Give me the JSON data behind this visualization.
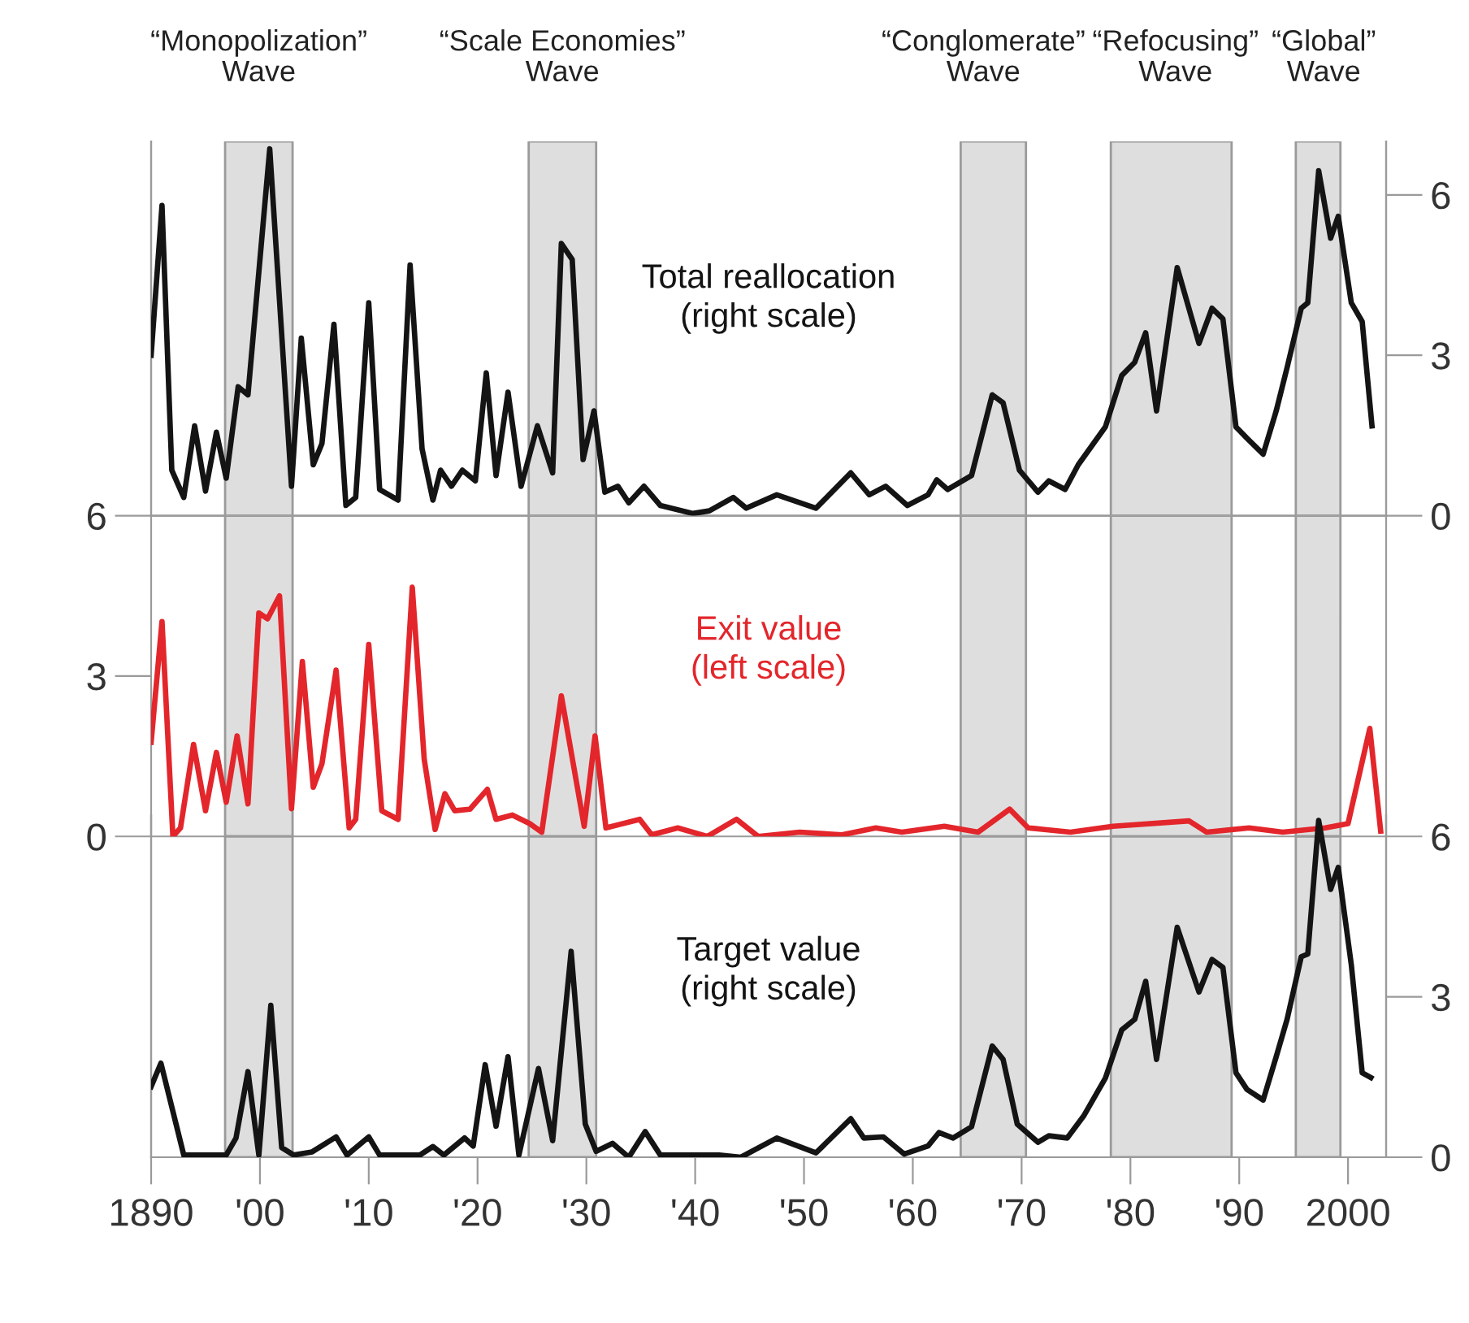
{
  "chart_data": [
    {
      "type": "line",
      "xlim": [
        1890,
        2003.5
      ],
      "y2lim": [
        0,
        7
      ],
      "y2ticks": [
        0,
        3,
        6
      ],
      "tick_labels": "y",
      "bands": [
        {
          "axis": "x",
          "from": 1896.8,
          "to": 1903,
          "label": "“Monopolization”\nWave",
          "color": "#dedede"
        },
        {
          "axis": "x",
          "from": 1924.7,
          "to": 1930.9,
          "label": "“Scale Economies”\nWave",
          "color": "#dedede"
        },
        {
          "axis": "x",
          "from": 1964.4,
          "to": 1970.4,
          "label": "“Conglomerate”\nWave",
          "color": "#dedede"
        },
        {
          "axis": "x",
          "from": 1978.2,
          "to": 1989.3,
          "label": "“Refocusing”\nWave",
          "color": "#dedede"
        },
        {
          "axis": "x",
          "from": 1995.2,
          "to": 1999.3,
          "label": "“Global”\nWave",
          "color": "#dedede"
        }
      ],
      "series": [
        {
          "name": "Total reallocation\n(right scale)",
          "color": "#141414",
          "axis": "y2",
          "x": [
            1890.0,
            1891.0,
            1891.9,
            1893.0,
            1894.0,
            1895.0,
            1896.0,
            1896.9,
            1898.0,
            1898.9,
            1900.9,
            1902.9,
            1903.8,
            1904.9,
            1905.7,
            1906.8,
            1907.9,
            1908.8,
            1910.0,
            1911.0,
            1912.7,
            1913.8,
            1914.9,
            1915.9,
            1916.6,
            1917.6,
            1918.6,
            1919.8,
            1920.8,
            1921.7,
            1922.8,
            1924.0,
            1925.5,
            1926.9,
            1927.7,
            1928.7,
            1929.7,
            1930.7,
            1931.7,
            1932.9,
            1933.9,
            1935.3,
            1936.8,
            1939.8,
            1941.3,
            1943.5,
            1944.7,
            1947.5,
            1951.1,
            1954.3,
            1956.0,
            1957.5,
            1959.5,
            1961.4,
            1962.2,
            1963.2,
            1965.4,
            1967.3,
            1968.3,
            1969.8,
            1971.5,
            1972.5,
            1974.0,
            1975.2,
            1977.7,
            1979.2,
            1980.4,
            1981.4,
            1982.4,
            1984.3,
            1986.3,
            1987.5,
            1988.5,
            1989.7,
            1990.7,
            1992.2,
            1993.4,
            1994.4,
            1995.7,
            1996.3,
            1997.3,
            1998.4,
            1999.1,
            2000.3,
            2001.3,
            2002.2
          ],
          "values": [
            3.0,
            5.8,
            0.85,
            0.34,
            1.68,
            0.46,
            1.56,
            0.7,
            2.41,
            2.26,
            6.86,
            0.55,
            3.32,
            0.95,
            1.35,
            3.58,
            0.19,
            0.34,
            3.98,
            0.49,
            0.29,
            4.69,
            1.25,
            0.29,
            0.85,
            0.55,
            0.85,
            0.65,
            2.67,
            0.75,
            2.31,
            0.55,
            1.68,
            0.8,
            5.09,
            4.79,
            1.05,
            1.96,
            0.44,
            0.55,
            0.24,
            0.55,
            0.19,
            0.04,
            0.09,
            0.34,
            0.14,
            0.39,
            0.14,
            0.8,
            0.39,
            0.55,
            0.19,
            0.39,
            0.67,
            0.49,
            0.75,
            2.26,
            2.11,
            0.85,
            0.44,
            0.65,
            0.49,
            0.95,
            1.66,
            2.62,
            2.87,
            3.42,
            1.96,
            4.64,
            3.22,
            3.88,
            3.68,
            1.66,
            1.45,
            1.15,
            1.96,
            2.77,
            3.88,
            3.98,
            6.45,
            5.19,
            5.6,
            3.98,
            3.63,
            1.68
          ]
        }
      ]
    },
    {
      "type": "line",
      "xlim": [
        1890,
        2003.5
      ],
      "ylim": [
        0,
        6
      ],
      "yticks": [
        0,
        3,
        6
      ],
      "tick_labels": "y",
      "bands": [
        {
          "axis": "x",
          "from": 1896.8,
          "to": 1903,
          "color": "#dedede"
        },
        {
          "axis": "x",
          "from": 1924.7,
          "to": 1930.9,
          "color": "#dedede"
        },
        {
          "axis": "x",
          "from": 1964.4,
          "to": 1970.4,
          "color": "#dedede"
        },
        {
          "axis": "x",
          "from": 1978.2,
          "to": 1989.3,
          "color": "#dedede"
        },
        {
          "axis": "x",
          "from": 1995.2,
          "to": 1999.3,
          "color": "#dedede"
        }
      ],
      "series": [
        {
          "name": "Exit value\n(left scale)",
          "color": "#e3262b",
          "x": [
            1890.0,
            1891.0,
            1892.0,
            1892.7,
            1893.9,
            1895.0,
            1896.0,
            1896.9,
            1897.9,
            1898.9,
            1899.9,
            1900.7,
            1901.8,
            1902.9,
            1903.9,
            1904.9,
            1905.7,
            1907.0,
            1908.2,
            1908.8,
            1910.0,
            1911.2,
            1912.7,
            1914.0,
            1915.1,
            1916.1,
            1917.0,
            1917.9,
            1919.3,
            1920.9,
            1921.7,
            1923.2,
            1924.8,
            1925.9,
            1927.7,
            1929.8,
            1930.8,
            1931.8,
            1934.9,
            1936.0,
            1938.4,
            1941.1,
            1943.8,
            1945.8,
            1949.6,
            1953.5,
            1956.6,
            1959.0,
            1962.9,
            1966.0,
            1968.9,
            1970.6,
            1974.5,
            1978.4,
            1985.4,
            1987.0,
            1990.9,
            1994.0,
            1997.9,
            2000.0,
            2002.0,
            2003.0
          ],
          "values": [
            1.76,
            4.02,
            0.0,
            0.16,
            1.72,
            0.48,
            1.57,
            0.64,
            1.88,
            0.61,
            4.18,
            4.07,
            4.5,
            0.52,
            3.27,
            0.92,
            1.36,
            3.11,
            0.16,
            0.32,
            3.59,
            0.48,
            0.32,
            4.66,
            1.44,
            0.13,
            0.8,
            0.48,
            0.51,
            0.88,
            0.32,
            0.4,
            0.24,
            0.08,
            2.63,
            0.19,
            1.88,
            0.16,
            0.32,
            0.03,
            0.16,
            0.0,
            0.32,
            0.0,
            0.08,
            0.03,
            0.16,
            0.08,
            0.19,
            0.08,
            0.51,
            0.16,
            0.08,
            0.19,
            0.29,
            0.08,
            0.16,
            0.08,
            0.16,
            0.24,
            2.02,
            0.1
          ]
        }
      ]
    },
    {
      "type": "line",
      "xlim": [
        1890,
        2003.5
      ],
      "y2lim": [
        0,
        6.4
      ],
      "y2ticks": [
        0,
        3,
        6
      ],
      "xticks": [
        {
          "value": 1890,
          "label": "1890"
        },
        {
          "value": 1900,
          "label": "'00"
        },
        {
          "value": 1910,
          "label": "'10"
        },
        {
          "value": 1920,
          "label": "'20"
        },
        {
          "value": 1930,
          "label": "'30"
        },
        {
          "value": 1940,
          "label": "'40"
        },
        {
          "value": 1950,
          "label": "'50"
        },
        {
          "value": 1960,
          "label": "'60"
        },
        {
          "value": 1970,
          "label": "'70"
        },
        {
          "value": 1980,
          "label": "'80"
        },
        {
          "value": 1990,
          "label": "'90"
        },
        {
          "value": 2000,
          "label": "2000"
        }
      ],
      "bands": [
        {
          "axis": "x",
          "from": 1896.8,
          "to": 1903,
          "color": "#dedede"
        },
        {
          "axis": "x",
          "from": 1924.7,
          "to": 1930.9,
          "color": "#dedede"
        },
        {
          "axis": "x",
          "from": 1964.4,
          "to": 1970.4,
          "color": "#dedede"
        },
        {
          "axis": "x",
          "from": 1978.2,
          "to": 1989.3,
          "color": "#dedede"
        },
        {
          "axis": "x",
          "from": 1995.2,
          "to": 1999.3,
          "color": "#dedede"
        }
      ],
      "series": [
        {
          "name": "Target value\n(right scale)",
          "color": "#141414",
          "axis": "y2",
          "x": [
            1890.0,
            1890.9,
            1893.0,
            1896.9,
            1897.8,
            1898.9,
            1899.9,
            1901.0,
            1902.0,
            1903.1,
            1904.8,
            1907.0,
            1908.0,
            1910.0,
            1911.0,
            1914.7,
            1915.9,
            1916.9,
            1918.8,
            1919.6,
            1920.7,
            1921.7,
            1922.8,
            1923.8,
            1925.6,
            1926.9,
            1928.6,
            1929.9,
            1930.9,
            1932.4,
            1933.9,
            1935.4,
            1936.8,
            1942.2,
            1944.2,
            1947.5,
            1951.1,
            1954.3,
            1955.5,
            1957.3,
            1959.2,
            1961.4,
            1962.4,
            1963.7,
            1965.4,
            1967.3,
            1968.3,
            1969.6,
            1971.5,
            1972.5,
            1974.2,
            1975.7,
            1977.7,
            1979.2,
            1980.4,
            1981.4,
            1982.4,
            1984.3,
            1986.3,
            1987.5,
            1988.5,
            1989.7,
            1990.7,
            1992.2,
            1993.4,
            1994.4,
            1995.7,
            1996.3,
            1997.3,
            1998.4,
            1999.1,
            2000.3,
            2001.3,
            2002.1
          ],
          "values": [
            1.32,
            1.76,
            0.04,
            0.04,
            0.36,
            1.6,
            0.04,
            2.84,
            0.18,
            0.04,
            0.1,
            0.38,
            0.04,
            0.38,
            0.04,
            0.04,
            0.2,
            0.04,
            0.36,
            0.21,
            1.73,
            0.58,
            1.88,
            0.04,
            1.66,
            0.31,
            3.85,
            0.62,
            0.11,
            0.26,
            0.0,
            0.48,
            0.04,
            0.04,
            0.0,
            0.36,
            0.08,
            0.72,
            0.36,
            0.38,
            0.06,
            0.21,
            0.46,
            0.36,
            0.57,
            2.08,
            1.83,
            0.62,
            0.28,
            0.4,
            0.36,
            0.77,
            1.48,
            2.38,
            2.58,
            3.29,
            1.83,
            4.3,
            3.09,
            3.7,
            3.55,
            1.58,
            1.27,
            1.07,
            1.88,
            2.58,
            3.75,
            3.8,
            6.3,
            5.01,
            5.42,
            3.6,
            1.58,
            1.49
          ]
        }
      ]
    }
  ]
}
